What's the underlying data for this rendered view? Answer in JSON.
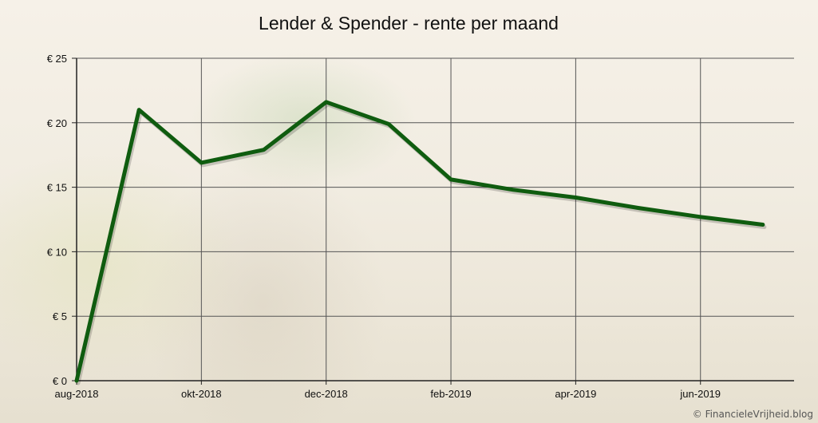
{
  "chart_data": {
    "type": "line",
    "title": "Lender & Spender - rente per maand",
    "xlabel": "",
    "ylabel": "",
    "x": [
      "aug-2018",
      "sep-2018",
      "okt-2018",
      "nov-2018",
      "dec-2018",
      "jan-2019",
      "feb-2019",
      "mrt-2019",
      "apr-2019",
      "mei-2019",
      "jun-2019",
      "jul-2019"
    ],
    "x_tick_labels": [
      "aug-2018",
      "okt-2018",
      "dec-2018",
      "feb-2019",
      "apr-2019",
      "jun-2019"
    ],
    "series": [
      {
        "values": [
          0,
          21.0,
          16.9,
          17.9,
          21.6,
          19.9,
          15.6,
          14.8,
          14.2,
          13.4,
          12.7,
          12.1
        ],
        "color": "#0f5c0f"
      }
    ],
    "ylim": [
      0,
      25
    ],
    "y_ticks": [
      0,
      5,
      10,
      15,
      20,
      25
    ],
    "y_tick_labels": [
      "€ 0",
      "€ 5",
      "€ 10",
      "€ 15",
      "€ 20",
      "€ 25"
    ],
    "grid": true
  },
  "credit": "© FinancieleVrijheid.blog",
  "colors": {
    "line": "#0f5c0f",
    "grid": "#555555"
  }
}
